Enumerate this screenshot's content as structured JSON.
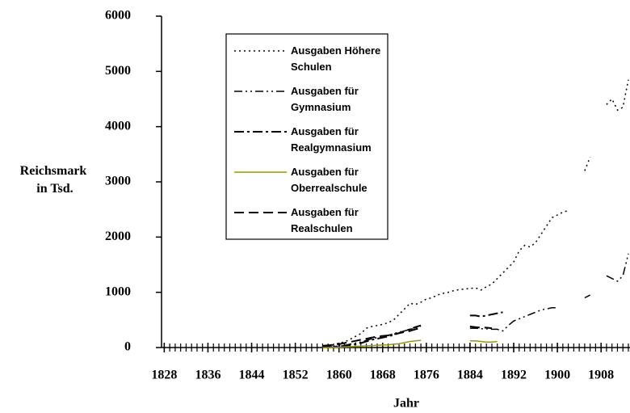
{
  "chart_data": {
    "type": "line",
    "x_label": "Jahr",
    "y_label": "Reichsmark in Tsd.",
    "x": [
      1857,
      1858,
      1859,
      1860,
      1861,
      1862,
      1863,
      1864,
      1865,
      1866,
      1867,
      1868,
      1869,
      1870,
      1871,
      1872,
      1873,
      1874,
      1875,
      1876,
      1877,
      1878,
      1879,
      1880,
      1881,
      1882,
      1883,
      1884,
      1885,
      1886,
      1887,
      1888,
      1889,
      1890,
      1891,
      1892,
      1893,
      1894,
      1895,
      1896,
      1897,
      1898,
      1899,
      1900,
      1901,
      1902,
      1903,
      1904,
      1905,
      1906,
      1907,
      1908,
      1909,
      1910,
      1911,
      1912,
      1913
    ],
    "series": [
      {
        "name": "Ausgaben Höhere Schulen",
        "color": "#000000",
        "values": [
          20,
          30,
          50,
          80,
          100,
          150,
          200,
          250,
          350,
          380,
          400,
          420,
          450,
          500,
          600,
          700,
          800,
          780,
          820,
          880,
          900,
          950,
          980,
          1000,
          1030,
          1050,
          1060,
          1070,
          1080,
          1040,
          1100,
          1150,
          1250,
          1350,
          1450,
          1550,
          1750,
          1850,
          1820,
          1900,
          2050,
          2200,
          2350,
          2400,
          2450,
          2480,
          null,
          null,
          3200,
          3450,
          null,
          null,
          4400,
          4500,
          4300,
          4350,
          4850
        ]
      },
      {
        "name": "Ausgaben für Gymnasium",
        "color": "#000000",
        "values": [
          10,
          15,
          20,
          30,
          40,
          60,
          80,
          100,
          130,
          160,
          180,
          200,
          220,
          250,
          280,
          300,
          330,
          350,
          380,
          null,
          null,
          null,
          null,
          null,
          null,
          null,
          null,
          350,
          350,
          340,
          340,
          330,
          330,
          300,
          400,
          480,
          520,
          560,
          600,
          640,
          680,
          700,
          720,
          720,
          null,
          null,
          null,
          null,
          900,
          950,
          null,
          null,
          1300,
          1250,
          1200,
          1300,
          1700
        ]
      },
      {
        "name": "Ausgaben für Realgymnasium",
        "color": "#000000",
        "values": [
          5,
          10,
          15,
          20,
          30,
          40,
          60,
          80,
          110,
          140,
          160,
          180,
          200,
          230,
          260,
          300,
          330,
          370,
          400,
          null,
          null,
          null,
          null,
          null,
          null,
          null,
          null,
          580,
          580,
          560,
          580,
          600,
          620,
          640,
          null,
          null,
          null,
          null,
          null,
          null,
          null,
          null,
          null,
          null,
          null,
          null,
          null,
          null,
          null,
          null,
          null,
          null,
          null,
          null,
          null,
          null,
          null
        ]
      },
      {
        "name": "Ausgaben für Oberrealschule",
        "color": "#9a9a00",
        "values": [
          0,
          0,
          5,
          5,
          10,
          15,
          20,
          25,
          30,
          35,
          40,
          45,
          50,
          60,
          70,
          90,
          110,
          120,
          130,
          null,
          null,
          null,
          null,
          null,
          null,
          null,
          null,
          120,
          120,
          110,
          100,
          100,
          110,
          null,
          null,
          null,
          null,
          null,
          null,
          null,
          null,
          null,
          null,
          null,
          null,
          null,
          null,
          null,
          null,
          null,
          null,
          null,
          null,
          null,
          null,
          null,
          null
        ]
      },
      {
        "name": "Ausgaben für Realschulen",
        "color": "#000000",
        "values": [
          30,
          40,
          50,
          60,
          80,
          100,
          120,
          140,
          160,
          180,
          200,
          210,
          220,
          240,
          260,
          280,
          300,
          330,
          350,
          null,
          null,
          null,
          null,
          null,
          null,
          null,
          null,
          380,
          370,
          360,
          360,
          350,
          null,
          null,
          null,
          null,
          null,
          null,
          null,
          null,
          null,
          null,
          null,
          null,
          null,
          null,
          null,
          null,
          null,
          null,
          null,
          null,
          null,
          null,
          null,
          null,
          null
        ]
      }
    ],
    "xlim": [
      1827.5,
      1913.3
    ],
    "xticks": [
      1828,
      1836,
      1844,
      1852,
      1860,
      1868,
      1876,
      1884,
      1892,
      1900,
      1908
    ],
    "ylim": [
      0,
      6000
    ],
    "yticks": [
      0,
      1000,
      2000,
      3000,
      4000,
      5000,
      6000
    ],
    "legend": "upper left"
  }
}
